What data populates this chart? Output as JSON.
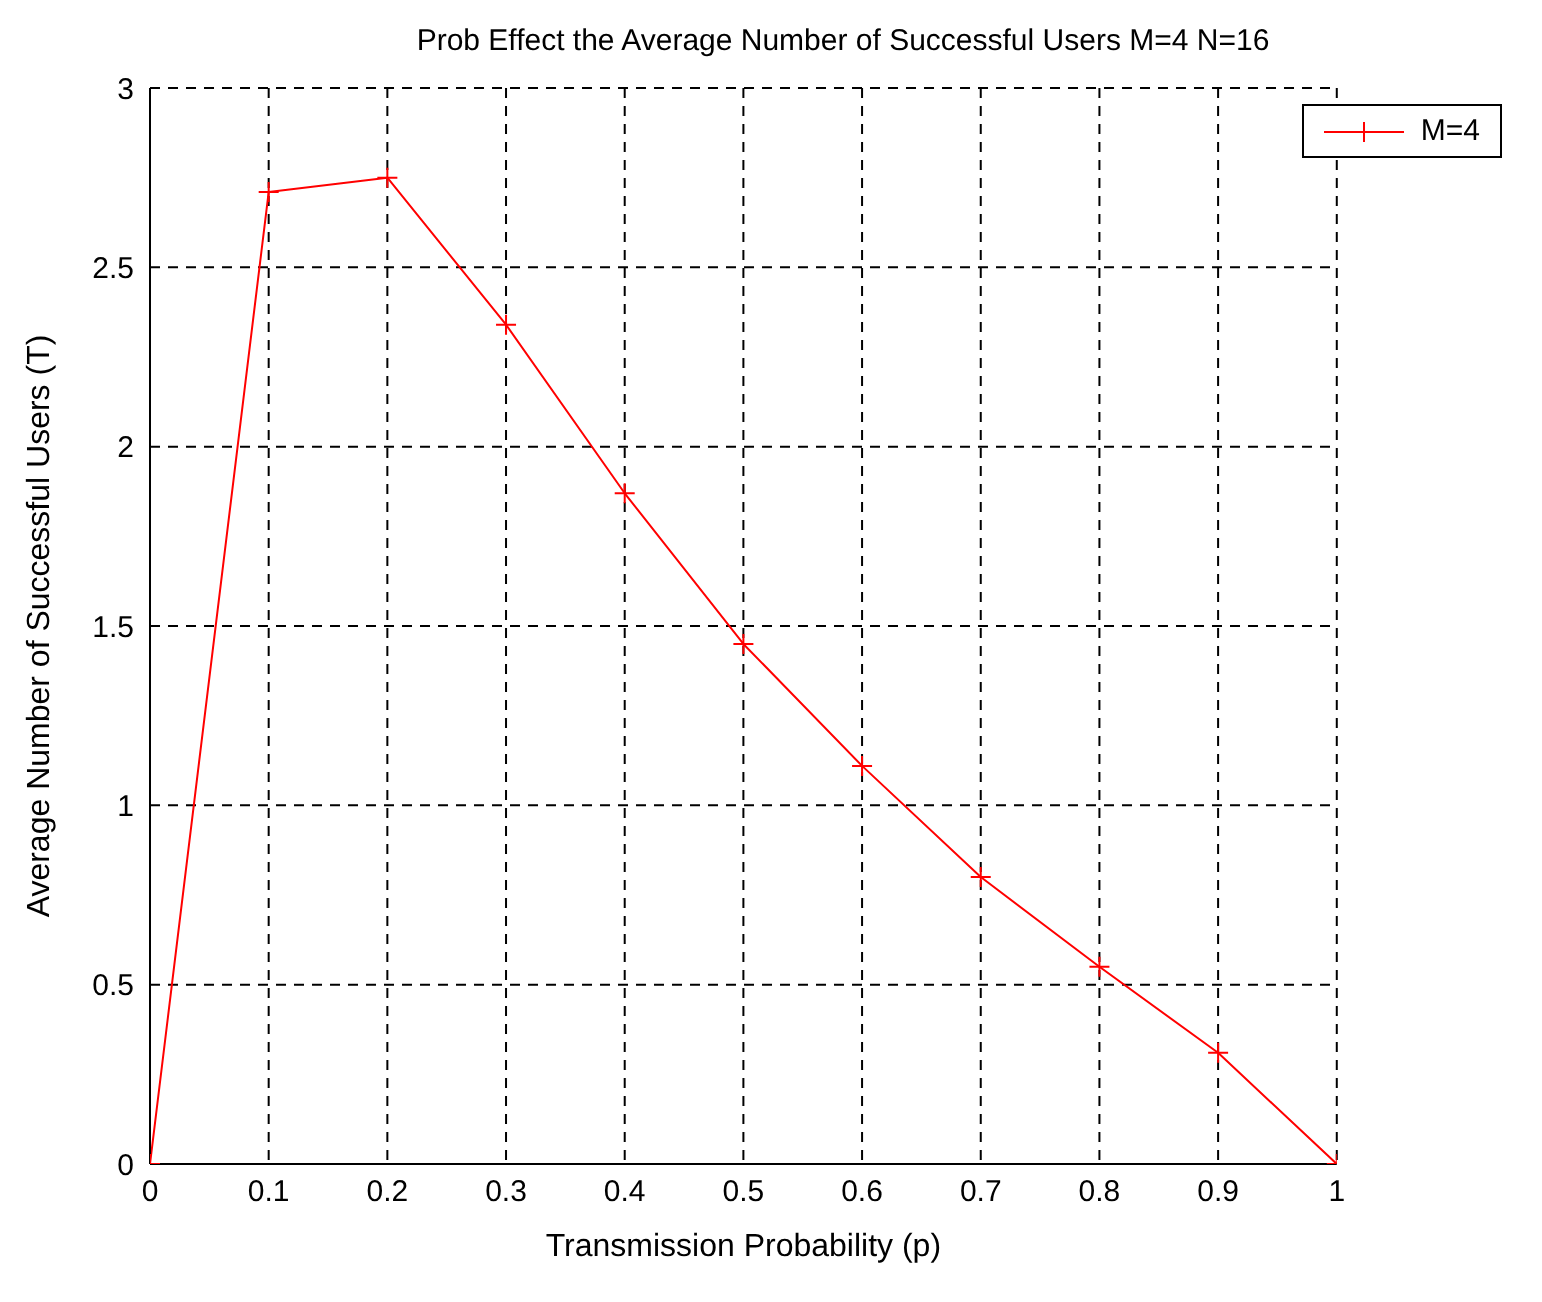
{
  "chart_data": {
    "type": "line",
    "title": "Prob Effect the Average Number of Successful Users  M=4 N=16",
    "xlabel": "Transmission Probability (p)",
    "ylabel": "Average Number of Successful Users (T)",
    "x": [
      0,
      0.1,
      0.2,
      0.3,
      0.4,
      0.5,
      0.6,
      0.7,
      0.8,
      0.9,
      1
    ],
    "series": [
      {
        "name": "M=4",
        "color": "#ff0000",
        "values": [
          0,
          2.71,
          2.75,
          2.34,
          1.87,
          1.45,
          1.11,
          0.8,
          0.55,
          0.31,
          0
        ]
      }
    ],
    "xlim": [
      0,
      1
    ],
    "xticks": [
      0,
      0.1,
      0.2,
      0.3,
      0.4,
      0.5,
      0.6,
      0.7,
      0.8,
      0.9,
      1
    ],
    "ylim": [
      0,
      3
    ],
    "yticks": [
      0,
      0.5,
      1,
      1.5,
      2,
      2.5,
      3
    ],
    "grid": true,
    "legend": "top right",
    "marker": "cross",
    "line_style": "solid"
  }
}
